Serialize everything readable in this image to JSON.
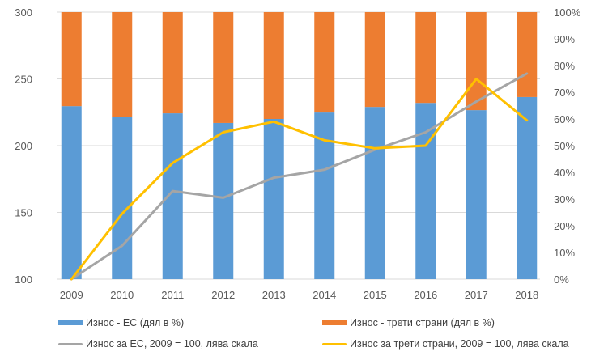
{
  "chart_data": {
    "type": "bar",
    "subtype": "stacked-percent-bar-with-lines",
    "title": "",
    "categories": [
      "2009",
      "2010",
      "2011",
      "2012",
      "2013",
      "2014",
      "2015",
      "2016",
      "2017",
      "2018"
    ],
    "bar_series": [
      {
        "name": "Износ - ЕС (дял в %)",
        "color": "#5B9BD5",
        "axis": "right",
        "values": [
          64.8,
          60.9,
          62.1,
          58.5,
          60.0,
          62.4,
          64.5,
          66.0,
          63.3,
          68.2
        ]
      },
      {
        "name": "Износ - трети страни (дял в %)",
        "color": "#ED7D31",
        "axis": "right",
        "values": [
          35.2,
          39.1,
          37.9,
          41.5,
          40.0,
          37.6,
          35.5,
          34.0,
          36.7,
          31.8
        ]
      }
    ],
    "line_series": [
      {
        "name": "Износ за ЕС, 2009 = 100, лява скала",
        "color": "#A5A5A5",
        "axis": "left",
        "values": [
          100,
          125,
          166,
          161,
          176,
          182,
          197,
          210,
          233,
          254
        ]
      },
      {
        "name": "Износ за трети страни, 2009 = 100, лява скала",
        "color": "#FFC000",
        "axis": "left",
        "values": [
          100,
          149,
          187,
          210,
          218,
          204,
          198,
          200,
          250,
          219
        ]
      }
    ],
    "left_axis": {
      "ylim": [
        100,
        300
      ],
      "ticks": [
        "100",
        "150",
        "200",
        "250",
        "300"
      ],
      "tick_values": [
        100,
        150,
        200,
        250,
        300
      ]
    },
    "right_axis": {
      "ylim": [
        0,
        100
      ],
      "ticks": [
        "0%",
        "10%",
        "20%",
        "30%",
        "40%",
        "50%",
        "60%",
        "70%",
        "80%",
        "90%",
        "100%"
      ],
      "tick_values": [
        0,
        10,
        20,
        30,
        40,
        50,
        60,
        70,
        80,
        90,
        100
      ]
    },
    "grid": true,
    "gridline_color": "#D9D9D9",
    "legend_position": "bottom"
  }
}
